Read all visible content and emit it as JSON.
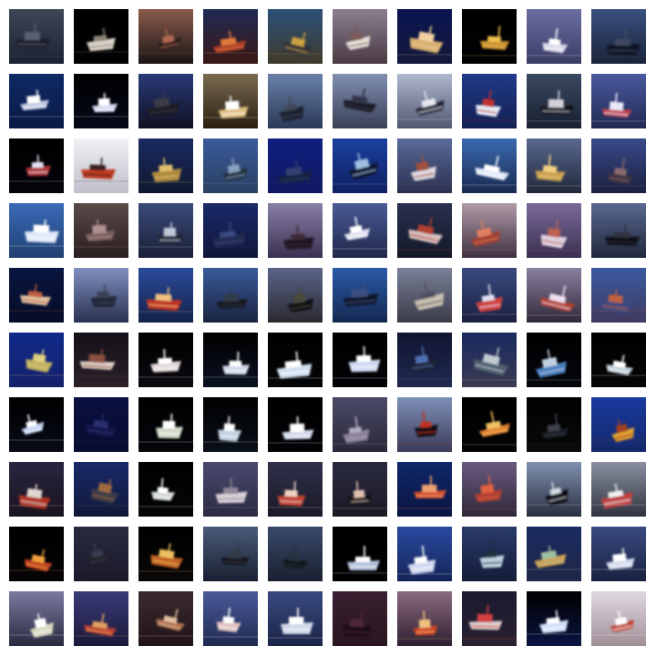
{
  "grid": {
    "rows": 10,
    "cols": 10,
    "subject": "ship",
    "background_color": "#ffffff",
    "tiles": [
      {
        "sky": "#3e4658",
        "water": "#1b2233",
        "hull": "#1a1f2c",
        "deck": "#5a6070",
        "style": "dark"
      },
      {
        "sky": "#000000",
        "water": "#020203",
        "hull": "#d9d2c8",
        "deck": "#8b8478",
        "style": "night"
      },
      {
        "sky": "#8a5b4a",
        "water": "#1a1516",
        "hull": "#2a1c1a",
        "deck": "#b06a52",
        "style": "sunset"
      },
      {
        "sky": "#1f2a55",
        "water": "#3a1814",
        "hull": "#b0402a",
        "deck": "#e07a3a",
        "style": "red"
      },
      {
        "sky": "#2b5078",
        "water": "#3e3a2a",
        "hull": "#30303a",
        "deck": "#c8a040",
        "style": "mixed"
      },
      {
        "sky": "#8a7e90",
        "water": "#4a3a44",
        "hull": "#e8e0d8",
        "deck": "#7a5a5a",
        "style": "white"
      },
      {
        "sky": "#0a1450",
        "water": "#14183a",
        "hull": "#d8b070",
        "deck": "#f0d0a0",
        "style": "white"
      },
      {
        "sky": "#000000",
        "water": "#030305",
        "hull": "#c89030",
        "deck": "#f0c050",
        "style": "night"
      },
      {
        "sky": "#6a6ea0",
        "water": "#3a3c66",
        "hull": "#d8d8e8",
        "deck": "#ffffff",
        "style": "white"
      },
      {
        "sky": "#3a5080",
        "water": "#1a2438",
        "hull": "#101420",
        "deck": "#404860",
        "style": "dark"
      },
      {
        "sky": "#0f2a66",
        "water": "#0a1a44",
        "hull": "#c0c8e0",
        "deck": "#ffffff",
        "style": "white"
      },
      {
        "sky": "#000000",
        "water": "#050818",
        "hull": "#d0d8f0",
        "deck": "#ffffff",
        "style": "night"
      },
      {
        "sky": "#2a3a7a",
        "water": "#101020",
        "hull": "#1a1a24",
        "deck": "#3a3a4a",
        "style": "dark"
      },
      {
        "sky": "#7a6a50",
        "water": "#2a2010",
        "hull": "#e0c080",
        "deck": "#ffffff",
        "style": "white"
      },
      {
        "sky": "#6a80a8",
        "water": "#2a3a58",
        "hull": "#1a2030",
        "deck": "#404858",
        "style": "dark"
      },
      {
        "sky": "#8090b0",
        "water": "#3a4058",
        "hull": "#1a1c28",
        "deck": "#303448",
        "style": "dark"
      },
      {
        "sky": "#b0b8d0",
        "water": "#505870",
        "hull": "#202434",
        "deck": "#e8e8f0",
        "style": "dark"
      },
      {
        "sky": "#203a8a",
        "water": "#142050",
        "hull": "#e8ecf8",
        "deck": "#c03030",
        "style": "white"
      },
      {
        "sky": "#3a4860",
        "water": "#182030",
        "hull": "#0a0c14",
        "deck": "#d0d0d8",
        "style": "dark"
      },
      {
        "sky": "#4a5aa0",
        "water": "#202850",
        "hull": "#c04050",
        "deck": "#e8e8f8",
        "style": "red"
      },
      {
        "sky": "#000000",
        "water": "#04040a",
        "hull": "#b03030",
        "deck": "#e0e0f0",
        "style": "red"
      },
      {
        "sky": "#f0f0f4",
        "water": "#c0c0cc",
        "hull": "#c03a20",
        "deck": "#3a2020",
        "style": "red"
      },
      {
        "sky": "#1a2a60",
        "water": "#101830",
        "hull": "#b08a40",
        "deck": "#e0c070",
        "style": "mixed"
      },
      {
        "sky": "#3a5a9a",
        "water": "#2a4060",
        "hull": "#203040",
        "deck": "#8aa0c0",
        "style": "dark"
      },
      {
        "sky": "#102080",
        "water": "#101860",
        "hull": "#182040",
        "deck": "#304070",
        "style": "dark"
      },
      {
        "sky": "#1a40a0",
        "water": "#102060",
        "hull": "#101830",
        "deck": "#a0c0e0",
        "style": "dark"
      },
      {
        "sky": "#5a6a9a",
        "water": "#2a3050",
        "hull": "#e0d8e0",
        "deck": "#a05040",
        "style": "white"
      },
      {
        "sky": "#3a6ab0",
        "water": "#1a2a50",
        "hull": "#e0e8f8",
        "deck": "#ffffff",
        "style": "white"
      },
      {
        "sky": "#5a6890",
        "water": "#20283a",
        "hull": "#c8a050",
        "deck": "#f0d080",
        "style": "mixed"
      },
      {
        "sky": "#3a4a8a",
        "water": "#1a2040",
        "hull": "#3a3040",
        "deck": "#8a6a70",
        "style": "dark"
      },
      {
        "sky": "#3a6ab8",
        "water": "#204070",
        "hull": "#e0e8f8",
        "deck": "#ffffff",
        "style": "white"
      },
      {
        "sky": "#5a4a48",
        "water": "#2a1e20",
        "hull": "#7a6060",
        "deck": "#b09090",
        "style": "dark"
      },
      {
        "sky": "#3a4a78",
        "water": "#1a2038",
        "hull": "#202838",
        "deck": "#c0c8d8",
        "style": "dark"
      },
      {
        "sky": "#1a2a6a",
        "water": "#10163a",
        "hull": "#202a50",
        "deck": "#3a4a80",
        "style": "dark"
      },
      {
        "sky": "#8a80a8",
        "water": "#3a3050",
        "hull": "#1a1420",
        "deck": "#402a38",
        "style": "dark"
      },
      {
        "sky": "#4a5a98",
        "water": "#202848",
        "hull": "#e0e0f0",
        "deck": "#ffffff",
        "style": "white"
      },
      {
        "sky": "#2a3050",
        "water": "#141828",
        "hull": "#d8c0c0",
        "deck": "#b04030",
        "style": "red"
      },
      {
        "sky": "#b09aa8",
        "water": "#403040",
        "hull": "#a04030",
        "deck": "#e08060",
        "style": "red"
      },
      {
        "sky": "#7a6a9a",
        "water": "#3a3050",
        "hull": "#e0d0e0",
        "deck": "#c06050",
        "style": "white"
      },
      {
        "sky": "#5a6890",
        "water": "#20283a",
        "hull": "#101018",
        "deck": "#303040",
        "style": "dark"
      },
      {
        "sky": "#0a1640",
        "water": "#060c28",
        "hull": "#e0c0a0",
        "deck": "#c06040",
        "style": "white"
      },
      {
        "sky": "#8090c0",
        "water": "#2a3050",
        "hull": "#202838",
        "deck": "#3a4258",
        "style": "dark"
      },
      {
        "sky": "#2a4a9a",
        "water": "#14224a",
        "hull": "#c03020",
        "deck": "#f0c080",
        "style": "red"
      },
      {
        "sky": "#3a5a9a",
        "water": "#1a2440",
        "hull": "#14181e",
        "deck": "#303a4a",
        "style": "dark"
      },
      {
        "sky": "#5a6488",
        "water": "#2a2a30",
        "hull": "#101014",
        "deck": "#4a4a3a",
        "style": "dark"
      },
      {
        "sky": "#2a5aa8",
        "water": "#142850",
        "hull": "#101828",
        "deck": "#3a5080",
        "style": "dark"
      },
      {
        "sky": "#7a8098",
        "water": "#3a3a48",
        "hull": "#c8c0b0",
        "deck": "#505060",
        "style": "white"
      },
      {
        "sky": "#3a4a80",
        "water": "#1a2040",
        "hull": "#d04040",
        "deck": "#e0e0f0",
        "style": "red"
      },
      {
        "sky": "#8a80a0",
        "water": "#302838",
        "hull": "#b04030",
        "deck": "#f0e0f0",
        "style": "red"
      },
      {
        "sky": "#3a5aa0",
        "water": "#403a60",
        "hull": "#3a4a80",
        "deck": "#c06040",
        "style": "mixed"
      },
      {
        "sky": "#102a8a",
        "water": "#14206a",
        "hull": "#c0b060",
        "deck": "#e0d080",
        "style": "mixed"
      },
      {
        "sky": "#141018",
        "water": "#2a2028",
        "hull": "#e0d0c8",
        "deck": "#8a5040",
        "style": "white"
      },
      {
        "sky": "#000000",
        "water": "#0a0a10",
        "hull": "#e0d8d8",
        "deck": "#ffffff",
        "style": "white"
      },
      {
        "sky": "#000000",
        "water": "#0a1020",
        "hull": "#d0d8e8",
        "deck": "#ffffff",
        "style": "white"
      },
      {
        "sky": "#000000",
        "water": "#040608",
        "hull": "#d0e0f0",
        "deck": "#ffffff",
        "style": "night"
      },
      {
        "sky": "#000000",
        "water": "#040408",
        "hull": "#d0d8f0",
        "deck": "#ffffff",
        "style": "night"
      },
      {
        "sky": "#101430",
        "water": "#202a50",
        "hull": "#1a2030",
        "deck": "#5070b0",
        "style": "dark"
      },
      {
        "sky": "#1a2a60",
        "water": "#3a3a50",
        "hull": "#506070",
        "deck": "#c0c8d0",
        "style": "dark"
      },
      {
        "sky": "#000000",
        "water": "#04060c",
        "hull": "#4a80c0",
        "deck": "#c0d0e0",
        "style": "night"
      },
      {
        "sky": "#000000",
        "water": "#060608",
        "hull": "#c0d0d8",
        "deck": "#ffffff",
        "style": "night"
      },
      {
        "sky": "#000000",
        "water": "#080a18",
        "hull": "#c0d0f0",
        "deck": "#ffffff",
        "style": "night"
      },
      {
        "sky": "#0a1040",
        "water": "#080c30",
        "hull": "#14184a",
        "deck": "#2a3070",
        "style": "dark"
      },
      {
        "sky": "#000000",
        "water": "#04060a",
        "hull": "#d0d8c8",
        "deck": "#ffffff",
        "style": "white"
      },
      {
        "sky": "#000000",
        "water": "#0a1018",
        "hull": "#c0d0e0",
        "deck": "#ffffff",
        "style": "night"
      },
      {
        "sky": "#000000",
        "water": "#040408",
        "hull": "#d0d8e8",
        "deck": "#ffffff",
        "style": "night"
      },
      {
        "sky": "#4a4a68",
        "water": "#2a2838",
        "hull": "#8a8098",
        "deck": "#b0a8c0",
        "style": "dark"
      },
      {
        "sky": "#8090b8",
        "water": "#3a3a58",
        "hull": "#101018",
        "deck": "#c03020",
        "style": "dark"
      },
      {
        "sky": "#000000",
        "water": "#040408",
        "hull": "#e08030",
        "deck": "#f0c060",
        "style": "night"
      },
      {
        "sky": "#000000",
        "water": "#0a0a0c",
        "hull": "#181a20",
        "deck": "#404050",
        "style": "dark"
      },
      {
        "sky": "#1a3aa0",
        "water": "#14286a",
        "hull": "#e0a030",
        "deck": "#a04020",
        "style": "mixed"
      },
      {
        "sky": "#2a2440",
        "water": "#1a1420",
        "hull": "#b03020",
        "deck": "#e0d8d0",
        "style": "red"
      },
      {
        "sky": "#1a2a6a",
        "water": "#101838",
        "hull": "#3a3a48",
        "deck": "#a06a40",
        "style": "dark"
      },
      {
        "sky": "#000000",
        "water": "#060608",
        "hull": "#d0d8d0",
        "deck": "#ffffff",
        "style": "white"
      },
      {
        "sky": "#4a4a70",
        "water": "#2a2a40",
        "hull": "#d8d0d8",
        "deck": "#908898",
        "style": "white"
      },
      {
        "sky": "#30304a",
        "water": "#1a1a28",
        "hull": "#c04030",
        "deck": "#f0d0c0",
        "style": "red"
      },
      {
        "sky": "#2a2a40",
        "water": "#1a1a24",
        "hull": "#101018",
        "deck": "#e0c0b0",
        "style": "dark"
      },
      {
        "sky": "#10286a",
        "water": "#0a1440",
        "hull": "#d05030",
        "deck": "#f0a070",
        "style": "red"
      },
      {
        "sky": "#6a5a80",
        "water": "#302838",
        "hull": "#b04030",
        "deck": "#e06040",
        "style": "red"
      },
      {
        "sky": "#8090b0",
        "water": "#2a3040",
        "hull": "#101018",
        "deck": "#d0d8e0",
        "style": "dark"
      },
      {
        "sky": "#8a90a0",
        "water": "#303440",
        "hull": "#c04040",
        "deck": "#f0f0f0",
        "style": "red"
      },
      {
        "sky": "#000000",
        "water": "#060408",
        "hull": "#c04020",
        "deck": "#f0a040",
        "style": "night"
      },
      {
        "sky": "#2a2a40",
        "water": "#1a1a2a",
        "hull": "#20202c",
        "deck": "#3a3a50",
        "style": "dark"
      },
      {
        "sky": "#000000",
        "water": "#0a0808",
        "hull": "#c06020",
        "deck": "#f0c060",
        "style": "night"
      },
      {
        "sky": "#4a5a7a",
        "water": "#1a2030",
        "hull": "#14181e",
        "deck": "#303a48",
        "style": "dark"
      },
      {
        "sky": "#3a4a6a",
        "water": "#1a2030",
        "hull": "#101418",
        "deck": "#283040",
        "style": "dark"
      },
      {
        "sky": "#000000",
        "water": "#020204",
        "hull": "#b0c0d8",
        "deck": "#ffffff",
        "style": "night"
      },
      {
        "sky": "#2a4aa0",
        "water": "#142458",
        "hull": "#d0d8f0",
        "deck": "#ffffff",
        "style": "white"
      },
      {
        "sky": "#2a3a6a",
        "water": "#141c38",
        "hull": "#c0d0e0",
        "deck": "#203040",
        "style": "dark"
      },
      {
        "sky": "#1a2a60",
        "water": "#202848",
        "hull": "#d0a050",
        "deck": "#a0c0a0",
        "style": "mixed"
      },
      {
        "sky": "#3a4a80",
        "water": "#1a2240",
        "hull": "#d0d8e8",
        "deck": "#ffffff",
        "style": "white"
      },
      {
        "sky": "#7a7aa0",
        "water": "#2a2a40",
        "hull": "#d8d8c0",
        "deck": "#ffffff",
        "style": "white"
      },
      {
        "sky": "#3a3a78",
        "water": "#1a1a3a",
        "hull": "#c04030",
        "deck": "#e0a060",
        "style": "red"
      },
      {
        "sky": "#3a2a30",
        "water": "#201418",
        "hull": "#b07050",
        "deck": "#e0c0a0",
        "style": "mixed"
      },
      {
        "sky": "#4a5a9a",
        "water": "#202a50",
        "hull": "#e0c0c0",
        "deck": "#ffffff",
        "style": "white"
      },
      {
        "sky": "#3a4a80",
        "water": "#1a2448",
        "hull": "#d0d8e8",
        "deck": "#ffffff",
        "style": "white"
      },
      {
        "sky": "#3a2030",
        "water": "#2a1420",
        "hull": "#1a0c14",
        "deck": "#502838",
        "style": "dark"
      },
      {
        "sky": "#8a6a80",
        "water": "#302030",
        "hull": "#d04020",
        "deck": "#f0c080",
        "style": "red"
      },
      {
        "sky": "#1a1a30",
        "water": "#2a2030",
        "hull": "#e0d0d0",
        "deck": "#d04040",
        "style": "white"
      },
      {
        "sky": "#000000",
        "water": "#0a1440",
        "hull": "#d0e0f8",
        "deck": "#ffffff",
        "style": "night"
      },
      {
        "sky": "#e0d8e0",
        "water": "#a09098",
        "hull": "#c04030",
        "deck": "#ffffff",
        "style": "red"
      }
    ]
  }
}
